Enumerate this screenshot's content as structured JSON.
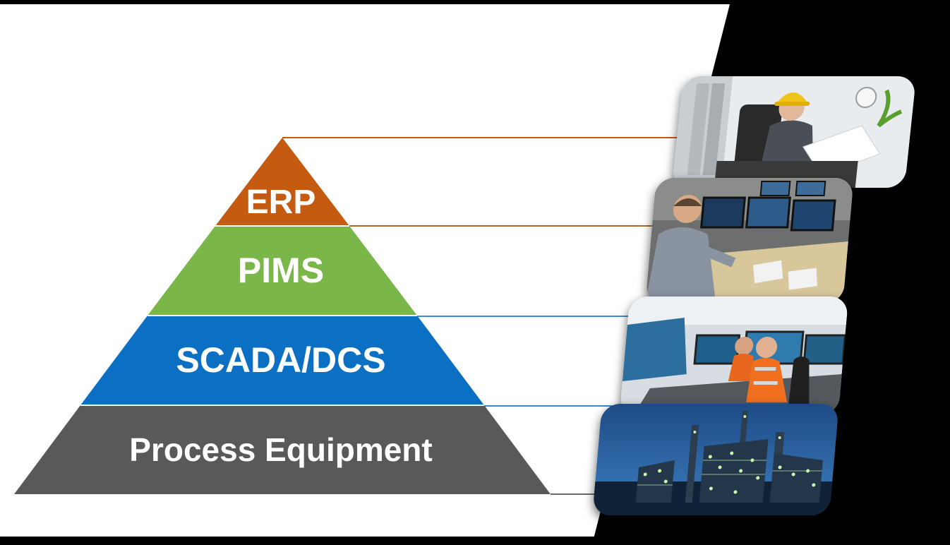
{
  "pyramid": {
    "levels": [
      {
        "key": "erp",
        "label": "ERP",
        "color": "#c55a11"
      },
      {
        "key": "pims",
        "label": "PIMS",
        "color": "#7ab648"
      },
      {
        "key": "scada",
        "label": "SCADA/DCS",
        "color": "#0b6fc4"
      },
      {
        "key": "process",
        "label": "Process Equipment",
        "color": "#595959"
      }
    ]
  },
  "photos": [
    {
      "subject": "engineer-in-hard-hat-reading-documents"
    },
    {
      "subject": "operator-at-computer-monitors"
    },
    {
      "subject": "operators-in-control-room"
    },
    {
      "subject": "industrial-plant-at-night"
    }
  ],
  "colors": {
    "background_light": "#ffffff",
    "background_dark": "#000000"
  }
}
